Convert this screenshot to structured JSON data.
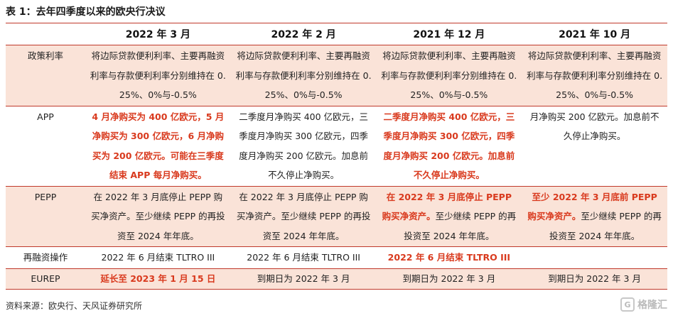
{
  "title": "表 1：去年四季度以来的欧央行决议",
  "columns": [
    "",
    "2022 年 3 月",
    "2022 年 2 月",
    "2021 年 12 月",
    "2021 年 10 月"
  ],
  "rows": [
    {
      "label": "政策利率",
      "cells": [
        {
          "text": "将边际贷款便利利率、主要再融资利率与存款便利利率分别维持在 0.25%、0%与-0.5%",
          "red": false
        },
        {
          "text": "将边际贷款便利利率、主要再融资利率与存款便利利率分别维持在 0.25%、0%与-0.5%",
          "red": false
        },
        {
          "text": "将边际贷款便利利率、主要再融资利率与存款便利利率分别维持在 0.25%、0%与-0.5%",
          "red": false
        },
        {
          "text": "将边际贷款便利利率、主要再融资利率与存款便利利率分别维持在 0.25%、0%与-0.5%",
          "red": false
        }
      ]
    },
    {
      "label": "APP",
      "cells": [
        {
          "text": "4 月净购买为 400 亿欧元，5 月净购买为 300 亿欧元，6 月净购买为 200 亿欧元。可能在三季度结束 APP 每月净购买。",
          "red": true
        },
        {
          "text": "二季度月净购买 400 亿欧元，三季度月净购买 300 亿欧元，四季度月净购买 200 亿欧元。加息前不久停止净购买。",
          "red": false
        },
        {
          "text": "二季度月净购买 400 亿欧元，三季度月净购买 300 亿欧元，四季度月净购买 200 亿欧元。加息前不久停止净购买。",
          "red": true
        },
        {
          "text": "月净购买 200 亿欧元。加息前不久停止净购买。",
          "red": false
        }
      ]
    },
    {
      "label": "PEPP",
      "cells": [
        {
          "plain": "在 2022 年 3 月底停止 PEPP 购买净资产。至少继续 PEPP 的再投资至 2024 年年底。",
          "redpart": ""
        },
        {
          "plain": "在 2022 年 3 月底停止 PEPP 购买净资产。至少继续 PEPP 的再投资至 2024 年年底。",
          "redpart": ""
        },
        {
          "redpart": "在 2022 年 3 月底停止 PEPP 购买净资产。",
          "plain": "至少继续 PEPP 的再投资至 2024 年年底。"
        },
        {
          "redpart": "至少 2022 年 3 月底前 PEPP 购买净资产。",
          "plain": "至少继续 PEPP 的再投资至 2024 年年底。"
        }
      ]
    },
    {
      "label": "再融资操作",
      "cells": [
        {
          "text": "2022 年 6 月结束 TLTRO III",
          "red": false
        },
        {
          "text": "2022 年 6 月结束 TLTRO III",
          "red": false
        },
        {
          "text": "2022 年 6 月结束 TLTRO III",
          "red": true
        },
        {
          "text": "",
          "red": false
        }
      ]
    },
    {
      "label": "EUREP",
      "cells": [
        {
          "text": "延长至 2023 年 1 月 15 日",
          "red": true
        },
        {
          "text": "到期日为 2022 年 3 月",
          "red": false
        },
        {
          "text": "到期日为 2022 年 3 月",
          "red": false
        },
        {
          "text": "到期日为 2022 年 3 月",
          "red": false
        }
      ]
    }
  ],
  "source": "资料来源：欧央行、天风证券研究所",
  "watermark": "格隆汇",
  "watermark_icon": "G",
  "colors": {
    "accent_red": "#d93a1e",
    "row_shade": "#fae3d8",
    "rule": "#c0392b"
  }
}
